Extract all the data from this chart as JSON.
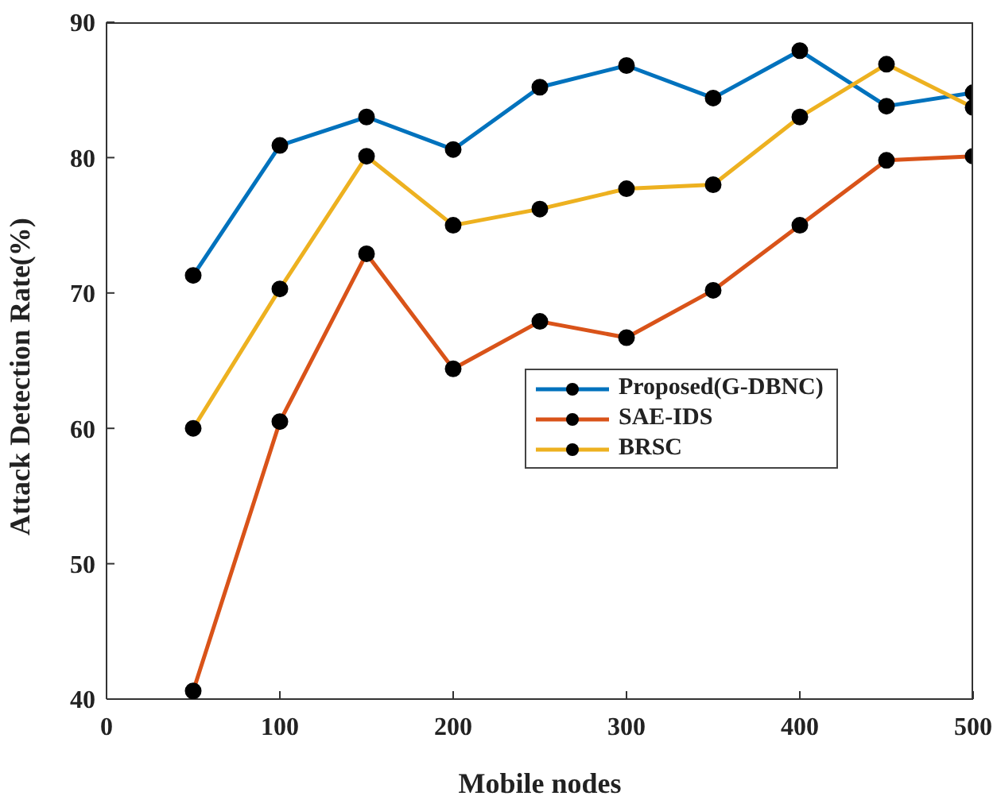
{
  "chart_data": {
    "type": "line",
    "xlabel": "Mobile nodes",
    "ylabel": "Attack Detection Rate(%)",
    "x": [
      50,
      100,
      150,
      200,
      250,
      300,
      350,
      400,
      450,
      500
    ],
    "series": [
      {
        "name": "Proposed(G-DBNC)",
        "color": "#0072bd",
        "values": [
          71.3,
          80.9,
          83,
          80.6,
          85.2,
          86.8,
          84.4,
          87.9,
          83.8,
          84.8
        ]
      },
      {
        "name": "SAE-IDS",
        "color": "#d95319",
        "values": [
          40.6,
          60.5,
          72.9,
          64.4,
          67.9,
          66.7,
          70.2,
          75,
          79.8,
          80.1
        ]
      },
      {
        "name": "BRSC",
        "color": "#edb120",
        "values": [
          60,
          70.3,
          80.1,
          75,
          76.2,
          77.7,
          78,
          83,
          86.9,
          83.7
        ]
      }
    ],
    "xlim": [
      0,
      500
    ],
    "xticks": [
      0,
      100,
      200,
      300,
      400,
      500
    ],
    "ylim": [
      40,
      90
    ],
    "yticks": [
      40,
      50,
      60,
      70,
      80,
      90
    ],
    "legend": "right",
    "marker": "circle",
    "line_style": "solid",
    "grid": false
  }
}
